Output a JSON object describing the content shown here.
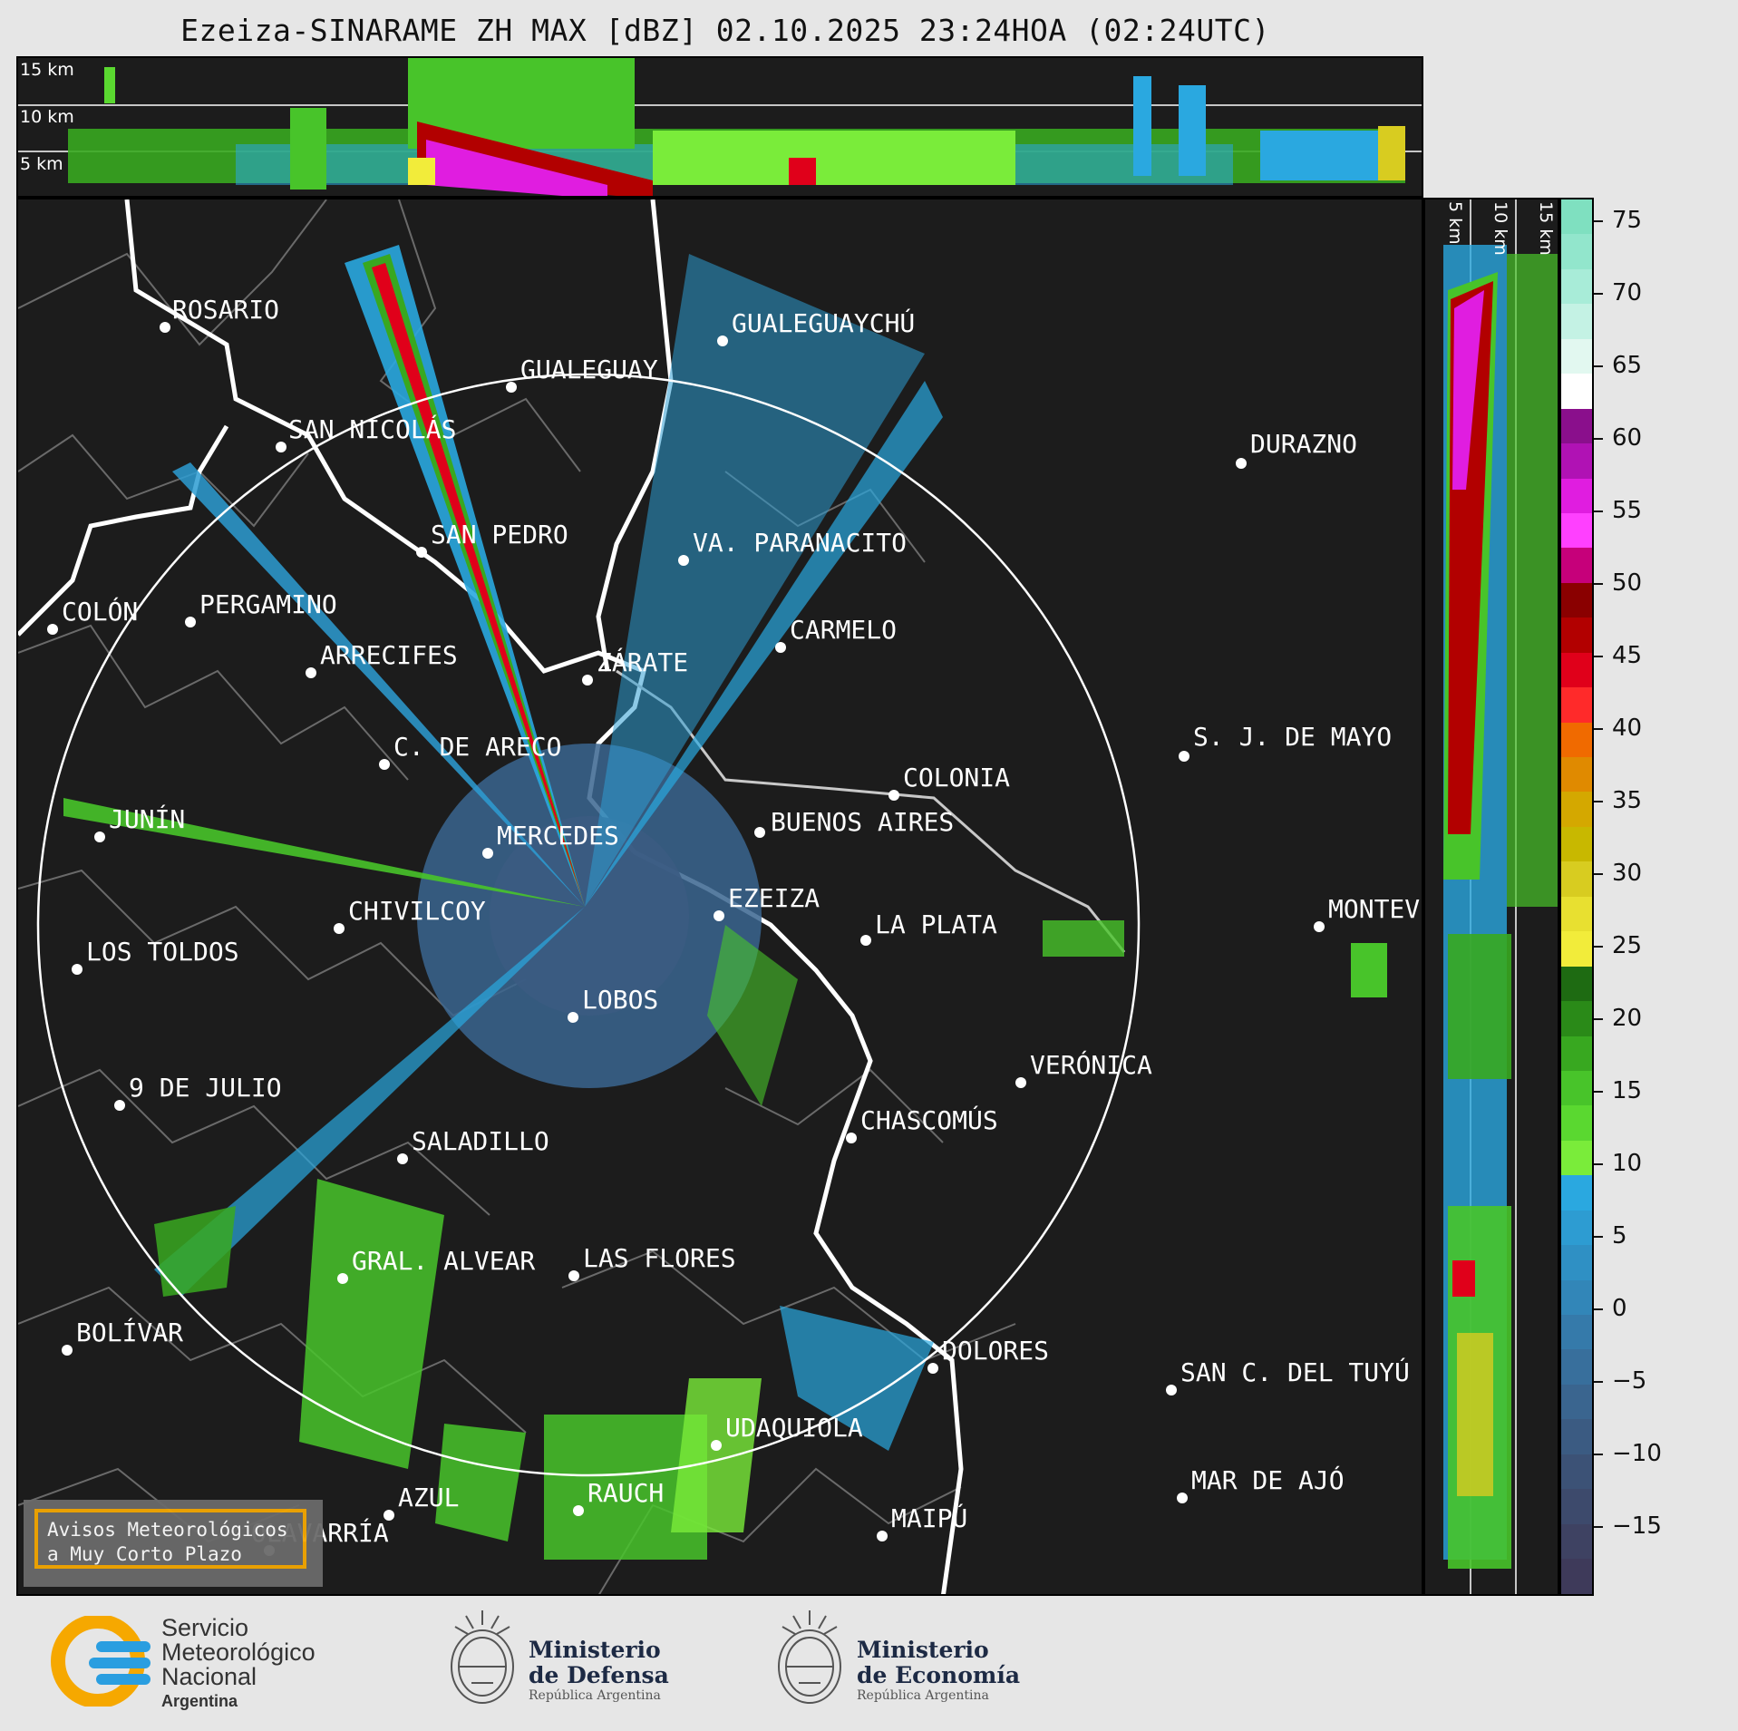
{
  "title": "Ezeiza-SINARAME ZH MAX [dBZ] 02.10.2025 23:24HOA (02:24UTC)",
  "top_panel": {
    "alt_labels": [
      "15 km",
      "10 km",
      "5 km"
    ]
  },
  "side_panel": {
    "alt_labels": [
      "5 km",
      "10 km",
      "15 km"
    ]
  },
  "colorbar": {
    "unit": "dBZ",
    "ticks": [
      "75",
      "70",
      "65",
      "60",
      "55",
      "50",
      "45",
      "40",
      "35",
      "30",
      "25",
      "20",
      "15",
      "10",
      "5",
      "0",
      "−5",
      "−10",
      "−15"
    ],
    "colors": [
      "#7fe0c0",
      "#92e6cc",
      "#a8ecd8",
      "#c4f2e4",
      "#e2f8f0",
      "#ffffff",
      "#8a0f8c",
      "#b012b4",
      "#e01de0",
      "#ff40ff",
      "#c6007a",
      "#8a0000",
      "#b20000",
      "#e0001a",
      "#ff2a2a",
      "#f06a00",
      "#e08a00",
      "#d4a800",
      "#c8b800",
      "#d8cc20",
      "#e8e030",
      "#f2ec3a",
      "#1e6b12",
      "#2a8a18",
      "#38a820",
      "#48c42a",
      "#5ad830",
      "#7aec3a",
      "#2aa8e0",
      "#2d9cd2",
      "#2f90c4",
      "#3286b8",
      "#357aaa",
      "#386f9c",
      "#3a658f",
      "#3b5b82",
      "#3c5276",
      "#3d4a6c",
      "#3e4262",
      "#3e3a5a"
    ]
  },
  "cities": [
    {
      "name": "ROSARIO"
    },
    {
      "name": "GUALEGUAYCHÚ"
    },
    {
      "name": "GUALEGUAY"
    },
    {
      "name": "SAN NICOLÁS"
    },
    {
      "name": "DURAZNO"
    },
    {
      "name": "SAN PEDRO"
    },
    {
      "name": "VA. PARANACITO"
    },
    {
      "name": "COLÓN"
    },
    {
      "name": "PERGAMINO"
    },
    {
      "name": "CARMELO"
    },
    {
      "name": "ARRECIFES"
    },
    {
      "name": "ZÁRATE"
    },
    {
      "name": "S. J. DE MAYO"
    },
    {
      "name": "C. DE ARECO"
    },
    {
      "name": "COLONIA"
    },
    {
      "name": "JUNÍN"
    },
    {
      "name": "BUENOS AIRES"
    },
    {
      "name": "MERCEDES"
    },
    {
      "name": "MONTEV"
    },
    {
      "name": "EZEIZA"
    },
    {
      "name": "CHIVILCOY"
    },
    {
      "name": "LA PLATA"
    },
    {
      "name": "LOS TOLDOS"
    },
    {
      "name": "LOBOS"
    },
    {
      "name": "VERÓNICA"
    },
    {
      "name": "9 DE JULIO"
    },
    {
      "name": "CHASCOMÚS"
    },
    {
      "name": "SALADILLO"
    },
    {
      "name": "GRAL. ALVEAR"
    },
    {
      "name": "LAS FLORES"
    },
    {
      "name": "BOLÍVAR"
    },
    {
      "name": "DOLORES"
    },
    {
      "name": "SAN C. DEL TUYÚ"
    },
    {
      "name": "UDAQUIOLA"
    },
    {
      "name": "MAR DE AJÓ"
    },
    {
      "name": "AZUL"
    },
    {
      "name": "RAUCH"
    },
    {
      "name": "MAIPÚ"
    },
    {
      "name": "OLAVARRÍA"
    }
  ],
  "avisos": {
    "line1": "Avisos Meteorológicos",
    "line2": "a Muy Corto Plazo"
  },
  "footer": {
    "smn": {
      "line1": "Servicio",
      "line2": "Meteorológico",
      "line3": "Nacional",
      "line4": "Argentina"
    },
    "defensa": {
      "line1": "Ministerio",
      "line2": "de Defensa",
      "line3": "República Argentina"
    },
    "economia": {
      "line1": "Ministerio",
      "line2": "de Economía",
      "line3": "República Argentina"
    },
    "colors": {
      "smn_blue": "#2a9ee0",
      "smn_orange": "#f6a800",
      "ministry_navy": "#1d2a44"
    }
  }
}
